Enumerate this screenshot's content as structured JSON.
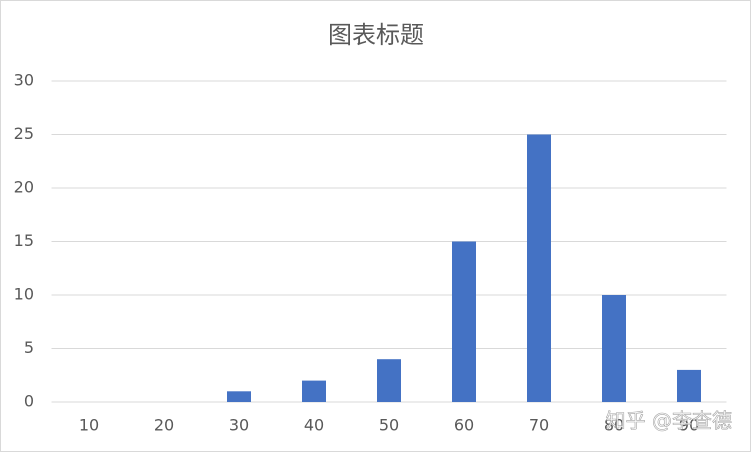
{
  "chart_data": {
    "type": "bar",
    "title": "图表标题",
    "categories": [
      "10",
      "20",
      "30",
      "40",
      "50",
      "60",
      "70",
      "80",
      "90"
    ],
    "values": [
      0,
      0,
      1,
      2,
      4,
      15,
      25,
      10,
      3
    ],
    "color": "#4472c4",
    "ylim": [
      0,
      30
    ],
    "yticks": [
      0,
      5,
      10,
      15,
      20,
      25,
      30
    ],
    "grid": true
  },
  "watermark": "知乎 @李查德"
}
